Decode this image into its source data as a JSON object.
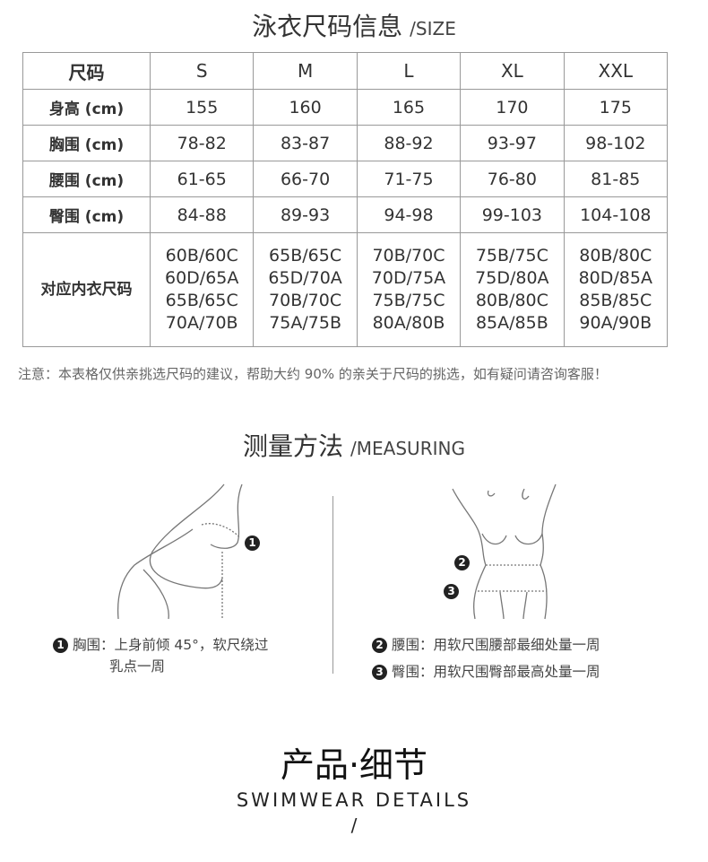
{
  "size_section": {
    "title_zh": "泳衣尺码信息",
    "title_en": "/SIZE"
  },
  "table": {
    "header": [
      "尺码",
      "S",
      "M",
      "L",
      "XL",
      "XXL"
    ],
    "rows": [
      {
        "label": "身高 (cm)",
        "values": [
          "155",
          "160",
          "165",
          "170",
          "175"
        ]
      },
      {
        "label": "胸围 (cm)",
        "values": [
          "78-82",
          "83-87",
          "88-92",
          "93-97",
          "98-102"
        ]
      },
      {
        "label": "腰围 (cm)",
        "values": [
          "61-65",
          "66-70",
          "71-75",
          "76-80",
          "81-85"
        ]
      },
      {
        "label": "臀围 (cm)",
        "values": [
          "84-88",
          "89-93",
          "94-98",
          "99-103",
          "104-108"
        ]
      }
    ],
    "bra_row": {
      "label": "对应内衣尺码",
      "values": [
        [
          "60B/60C",
          "60D/65A",
          "65B/65C",
          "70A/70B"
        ],
        [
          "65B/65C",
          "65D/70A",
          "70B/70C",
          "75A/75B"
        ],
        [
          "70B/70C",
          "70D/75A",
          "75B/75C",
          "80A/80B"
        ],
        [
          "75B/75C",
          "75D/80A",
          "80B/80C",
          "85A/85B"
        ],
        [
          "80B/80C",
          "80D/85A",
          "85B/85C",
          "90A/90B"
        ]
      ]
    }
  },
  "note": "注意：本表格仅供亲挑选尺码的建议，帮助大约 90% 的亲关于尺码的挑选，如有疑问请咨询客服！",
  "measuring": {
    "title_zh": "测量方法",
    "title_en": "/MEASURING",
    "markers": [
      "1",
      "2",
      "3"
    ],
    "bust": {
      "num": "1",
      "line1": "胸围：上身前倾 45°，软尺绕过",
      "line2": "乳点一周"
    },
    "waist": {
      "num": "2",
      "text": "腰围：用软尺围腰部最细处量一周"
    },
    "hip": {
      "num": "3",
      "text": "臀围：用软尺围臀部最高处量一周"
    }
  },
  "details": {
    "title": "产品·细节",
    "subtitle": "SWIMWEAR DETAILS",
    "slash": "/"
  }
}
